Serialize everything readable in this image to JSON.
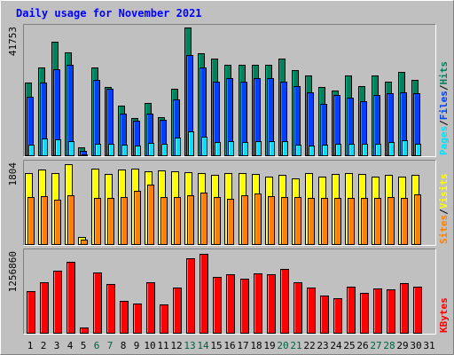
{
  "chart_data": {
    "type": "bar",
    "title": "Daily usage for November 2021",
    "days": [
      "1",
      "2",
      "3",
      "4",
      "5",
      "6",
      "7",
      "8",
      "9",
      "10",
      "11",
      "12",
      "13",
      "14",
      "15",
      "16",
      "17",
      "18",
      "19",
      "20",
      "21",
      "22",
      "23",
      "24",
      "25",
      "26",
      "27",
      "28",
      "29",
      "30",
      "31"
    ],
    "weekend_days": [
      "6",
      "7",
      "13",
      "14",
      "20",
      "21",
      "27",
      "28"
    ],
    "colors": {
      "background": "#c0c0c0",
      "plot": "#c0c0c0",
      "title": "#0000ff",
      "weekday_tick": "#000000",
      "weekend_tick": "#006040",
      "hits": "#00805c",
      "files": "#0040ff",
      "pages": "#00e0ff",
      "visits": "#ffff00",
      "sites": "#ff8000",
      "kbytes": "#ff0000"
    },
    "panels": [
      {
        "id": "hits-files-pages",
        "ymax_label": "41753",
        "ymax": 41753,
        "legend": [
          {
            "text": "Hits",
            "color": "#00805c"
          },
          {
            "text": "Files",
            "color": "#0040ff"
          },
          {
            "text": "Pages",
            "color": "#00e0ff"
          }
        ],
        "series": [
          {
            "name": "Hits",
            "color": "#00805c",
            "values": [
              24000,
              29000,
              37500,
              34000,
              3000,
              29000,
              22500,
              16500,
              12500,
              17500,
              12700,
              22000,
              42000,
              33500,
              32000,
              30000,
              30000,
              30000,
              30000,
              31800,
              28000,
              26500,
              22500,
              21500,
              26500,
              23000,
              26500,
              24500,
              27500,
              25000
            ]
          },
          {
            "name": "Files",
            "color": "#0040ff",
            "values": [
              19500,
              24000,
              28500,
              30000,
              1800,
              25000,
              22000,
              14000,
              11500,
              14000,
              11800,
              18500,
              33000,
              29000,
              24500,
              25500,
              24500,
              25500,
              25500,
              24500,
              23000,
              21000,
              17000,
              20000,
              19000,
              18000,
              20000,
              20500,
              21000,
              20500
            ]
          },
          {
            "name": "Pages",
            "color": "#00e0ff",
            "values": [
              3800,
              5800,
              5500,
              5000,
              600,
              4200,
              4000,
              3800,
              3600,
              4400,
              4200,
              6200,
              8000,
              6400,
              4600,
              4800,
              4600,
              5000,
              5000,
              4800,
              3800,
              3600,
              3800,
              4000,
              4200,
              4000,
              4200,
              4600,
              5200,
              4000
            ]
          }
        ]
      },
      {
        "id": "visits-sites",
        "ymax_label": "1804",
        "ymax": 1804,
        "legend": [
          {
            "text": "Visits",
            "color": "#ffff00"
          },
          {
            "text": "Sites",
            "color": "#ff8000"
          }
        ],
        "series": [
          {
            "name": "Visits",
            "color": "#ffff00",
            "values": [
              1600,
              1690,
              1610,
              1804,
              186,
              1710,
              1590,
              1690,
              1700,
              1650,
              1660,
              1650,
              1625,
              1600,
              1560,
              1610,
              1610,
              1590,
              1520,
              1575,
              1480,
              1600,
              1520,
              1580,
              1600,
              1595,
              1525,
              1575,
              1535,
              1575
            ]
          },
          {
            "name": "Sites",
            "color": "#ff8000",
            "values": [
              1070,
              1100,
              1005,
              1120,
              124,
              1060,
              1060,
              1070,
              1215,
              1345,
              1080,
              1080,
              1120,
              1170,
              1080,
              1035,
              1110,
              1140,
              1100,
              1070,
              1065,
              1045,
              1045,
              1050,
              1055,
              1045,
              1045,
              1070,
              1050,
              1130
            ]
          }
        ]
      },
      {
        "id": "kbytes",
        "ymax_label": "1256860",
        "ymax": 1256860,
        "legend": [
          {
            "text": "KBytes",
            "color": "#ff0000"
          }
        ],
        "series": [
          {
            "name": "KBytes",
            "color": "#ff0000",
            "values": [
              665000,
              795000,
              985000,
              1125000,
              100000,
              956000,
              775000,
              515000,
              470000,
              795000,
              455000,
              720000,
              1175000,
              1245000,
              887000,
              920000,
              850000,
              940000,
              930000,
              1010000,
              800000,
              714000,
              600000,
              555000,
              728000,
              640000,
              705000,
              685000,
              782000,
              734000
            ]
          }
        ]
      }
    ]
  }
}
